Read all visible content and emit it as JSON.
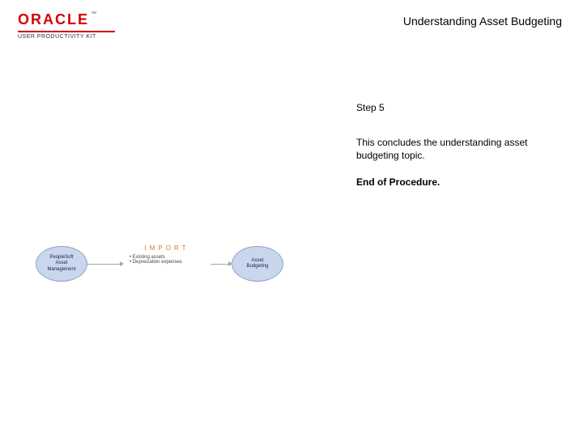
{
  "header": {
    "logo_word": "ORACLE",
    "logo_tm": "™",
    "logo_subtitle": "USER PRODUCTIVITY KIT",
    "page_title": "Understanding Asset Budgeting"
  },
  "content": {
    "step_label": "Step 5",
    "body": "This concludes the understanding asset budgeting topic.",
    "end_label": "End of Procedure."
  },
  "diagram": {
    "left_bubble_line1": "PeopleSoft",
    "left_bubble_line2": "Asset",
    "left_bubble_line3": "Management",
    "right_bubble_line1": "Asset",
    "right_bubble_line2": "Budgeting",
    "center_label": "IMPORT",
    "center_item1": "• Existing assets",
    "center_item2": "• Depreciation expenses",
    "colors": {
      "bubble_fill": "#c9d6ec",
      "bubble_border": "#8fa4c8",
      "import_label": "#d97a2a",
      "logo_red": "#d40000"
    }
  }
}
